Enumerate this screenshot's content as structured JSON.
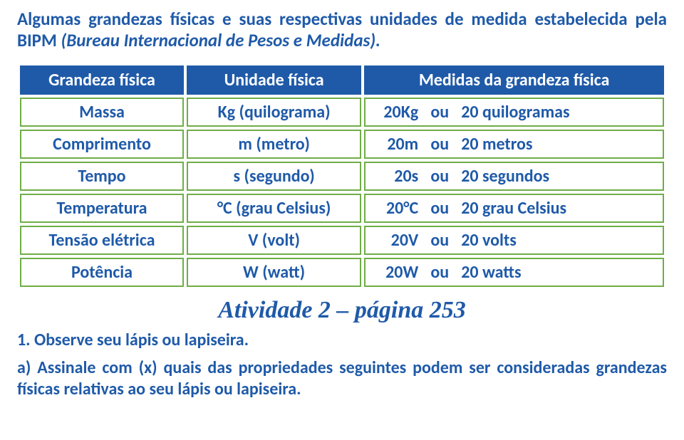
{
  "intro": {
    "line1": "Algumas grandezas físicas e suas respectivas unidades de medida estabelecida",
    "line2_a": "pela BIPM ",
    "line2_b": "(Bureau Internacional de Pesos e Medidas).",
    "color": "#1f5aa8"
  },
  "table": {
    "header_bg": "#1f5aa8",
    "header_fg": "#ffffff",
    "cell_border": "#70ad46",
    "cell_fg": "#1f5aa8",
    "headers": [
      "Grandeza física",
      "Unidade física",
      "Medidas da grandeza física"
    ],
    "rows": [
      {
        "g": "Massa",
        "u": "Kg (quilograma)",
        "mv": "20Kg",
        "mo": "ou",
        "mr": "20 quilogramas"
      },
      {
        "g": "Comprimento",
        "u": "m (metro)",
        "mv": "20m",
        "mo": "ou",
        "mr": "20 metros"
      },
      {
        "g": "Tempo",
        "u": "s (segundo)",
        "mv": "20s",
        "mo": "ou",
        "mr": "20 segundos"
      },
      {
        "g": "Temperatura",
        "u": "°C (grau Celsius)",
        "mv": "20°C",
        "mo": "ou",
        "mr": "20 grau Celsius"
      },
      {
        "g": "Tensão elétrica",
        "u": "V (volt)",
        "mv": "20V",
        "mo": "ou",
        "mr": "20 volts"
      },
      {
        "g": "Potência",
        "u": "W (watt)",
        "mv": "20W",
        "mo": "ou",
        "mr": "20 watts"
      }
    ]
  },
  "activity": "Atividade 2 – página 253",
  "q1": "1. Observe seu lápis ou lapiseira.",
  "qa": "a) Assinale com (x) quais das propriedades seguintes podem ser consideradas grandezas físicas relativas ao seu lápis ou lapiseira."
}
